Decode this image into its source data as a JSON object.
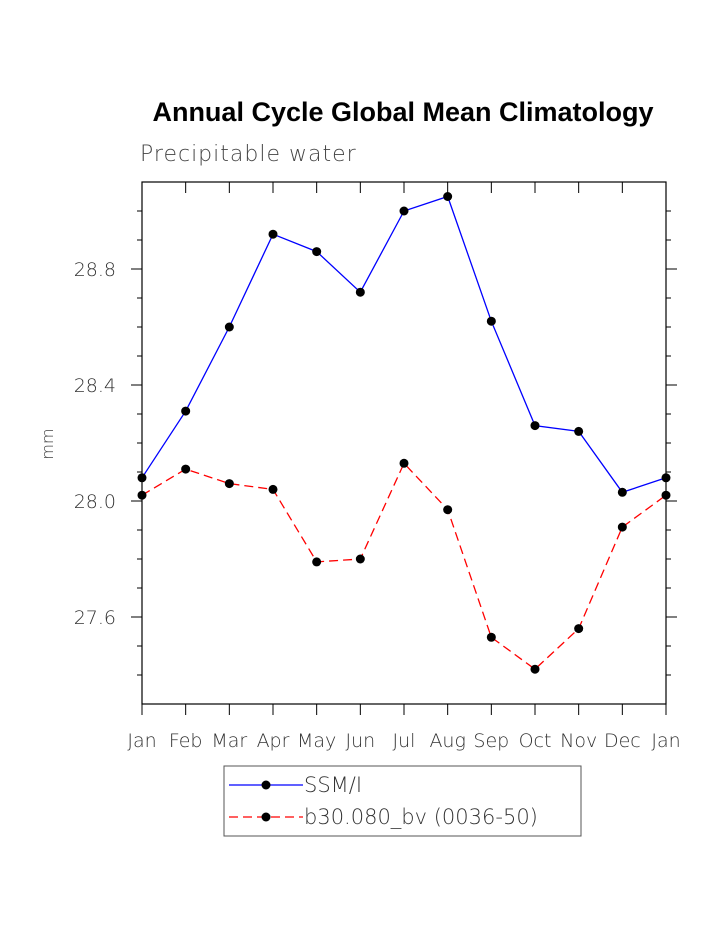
{
  "chart_data": {
    "type": "line",
    "title": "Annual Cycle Global Mean Climatology",
    "subtitle": "Precipitable water",
    "xlabel": "",
    "ylabel": "mm",
    "categories": [
      "Jan",
      "Feb",
      "Mar",
      "Apr",
      "May",
      "Jun",
      "Jul",
      "Aug",
      "Sep",
      "Oct",
      "Nov",
      "Dec",
      "Jan"
    ],
    "ylim": [
      27.3,
      29.1
    ],
    "yticks": [
      27.6,
      28.0,
      28.4,
      28.8
    ],
    "ytick_labels": [
      "27.6",
      "28.0",
      "28.4",
      "28.8"
    ],
    "grid": false,
    "legend_position": "bottom-center",
    "series": [
      {
        "name": "SSM/I",
        "color": "#0000ff",
        "style": "solid",
        "values": [
          28.08,
          28.31,
          28.6,
          28.92,
          28.86,
          28.72,
          29.0,
          29.05,
          28.62,
          28.26,
          28.24,
          28.03,
          28.08
        ]
      },
      {
        "name": "b30.080_bv (0036-50)",
        "color": "#ff0000",
        "style": "dashed",
        "values": [
          28.02,
          28.11,
          28.06,
          28.04,
          27.79,
          27.8,
          28.13,
          27.97,
          27.53,
          27.42,
          27.56,
          27.91,
          28.02
        ]
      }
    ]
  }
}
